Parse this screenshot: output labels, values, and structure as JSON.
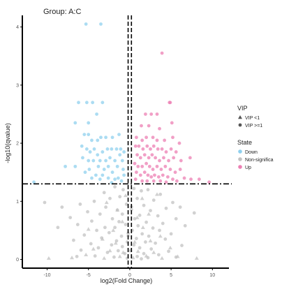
{
  "chart_data": {
    "type": "scatter",
    "title": "Group: A:C",
    "xlabel": "log2(Fold Change)",
    "ylabel": "-log10(qvalue)",
    "xlim": [
      -13,
      12
    ],
    "ylim": [
      -0.15,
      4.2
    ],
    "xticks": [
      -10,
      -5,
      0,
      5,
      10
    ],
    "yticks": [
      0,
      1,
      2,
      3,
      4
    ],
    "grid": false,
    "thresholds": {
      "vertical_lines_x": [
        -0.2,
        0.2
      ],
      "horizontal_line_y": 1.3
    },
    "legend": {
      "placement": "right",
      "groups": [
        {
          "title": "VIP",
          "entries": [
            {
              "label": "VIP <1",
              "shape": "triangle"
            },
            {
              "label": "VIP >=1",
              "shape": "circle"
            }
          ]
        },
        {
          "title": "State",
          "entries": [
            {
              "label": "Down",
              "color": "#8fd0ee"
            },
            {
              "label": "Non-significa",
              "color": "#c2c2c2"
            },
            {
              "label": "Up",
              "color": "#ec7fb3"
            }
          ]
        }
      ]
    },
    "colors": {
      "Down": "#8fd0ee",
      "Non-significant": "#c2c2c2",
      "Up": "#ec7fb3",
      "threshold_line": "#000000"
    },
    "series": [
      {
        "name": "Down",
        "shape": "circle",
        "points": [
          [
            -5.3,
            4.05
          ],
          [
            -3.5,
            4.05
          ],
          [
            -6.2,
            2.7
          ],
          [
            -5.2,
            2.7
          ],
          [
            -4.5,
            2.7
          ],
          [
            -3.3,
            2.7
          ],
          [
            -6.6,
            2.35
          ],
          [
            -5.0,
            2.35
          ],
          [
            -4.0,
            2.5
          ],
          [
            -5.5,
            2.15
          ],
          [
            -5.0,
            2.15
          ],
          [
            -4.6,
            2.05
          ],
          [
            -3.9,
            2.05
          ],
          [
            -3.5,
            2.1
          ],
          [
            -2.9,
            2.1
          ],
          [
            -2.1,
            2.1
          ],
          [
            -1.3,
            2.15
          ],
          [
            -5.8,
            1.95
          ],
          [
            -5.2,
            1.9
          ],
          [
            -4.8,
            1.85
          ],
          [
            -4.3,
            1.9
          ],
          [
            -3.9,
            1.8
          ],
          [
            -3.3,
            1.85
          ],
          [
            -2.7,
            1.9
          ],
          [
            -2.2,
            1.9
          ],
          [
            -1.6,
            1.9
          ],
          [
            -1.1,
            1.9
          ],
          [
            -0.7,
            1.85
          ],
          [
            -5.7,
            1.75
          ],
          [
            -5.0,
            1.7
          ],
          [
            -4.4,
            1.7
          ],
          [
            -3.6,
            1.7
          ],
          [
            -2.9,
            1.7
          ],
          [
            -2.4,
            1.75
          ],
          [
            -1.8,
            1.7
          ],
          [
            -1.2,
            1.8
          ],
          [
            -0.9,
            1.7
          ],
          [
            -7.8,
            1.6
          ],
          [
            -6.6,
            1.6
          ],
          [
            -4.9,
            1.55
          ],
          [
            -3.8,
            1.6
          ],
          [
            -3.1,
            1.55
          ],
          [
            -2.6,
            1.6
          ],
          [
            -1.5,
            1.6
          ],
          [
            -0.8,
            1.55
          ],
          [
            -5.4,
            1.5
          ],
          [
            -4.1,
            1.45
          ],
          [
            -3.3,
            1.45
          ],
          [
            -2.1,
            1.5
          ],
          [
            -1.4,
            1.4
          ],
          [
            -0.7,
            1.45
          ],
          [
            -4.6,
            1.4
          ],
          [
            -3.6,
            1.38
          ],
          [
            -2.6,
            1.4
          ],
          [
            -1.8,
            1.38
          ],
          [
            -1.0,
            1.35
          ],
          [
            -2.2,
            1.32
          ],
          [
            -11.6,
            1.33
          ]
        ]
      },
      {
        "name": "Up",
        "shape": "circle",
        "points": [
          [
            3.9,
            3.55
          ],
          [
            4.8,
            2.7
          ],
          [
            4.9,
            2.7
          ],
          [
            1.9,
            2.5
          ],
          [
            2.6,
            2.5
          ],
          [
            3.3,
            2.5
          ],
          [
            1.4,
            2.3
          ],
          [
            2.3,
            2.3
          ],
          [
            3.6,
            2.25
          ],
          [
            5.1,
            2.35
          ],
          [
            0.8,
            2.1
          ],
          [
            1.5,
            2.05
          ],
          [
            2.0,
            2.1
          ],
          [
            2.8,
            2.1
          ],
          [
            3.3,
            2.05
          ],
          [
            4.2,
            2.05
          ],
          [
            5.2,
            2.1
          ],
          [
            6.0,
            2.0
          ],
          [
            0.7,
            1.95
          ],
          [
            1.1,
            1.95
          ],
          [
            1.6,
            1.9
          ],
          [
            2.1,
            1.95
          ],
          [
            2.5,
            1.9
          ],
          [
            2.9,
            1.95
          ],
          [
            3.4,
            1.9
          ],
          [
            3.9,
            1.9
          ],
          [
            4.4,
            1.85
          ],
          [
            5.0,
            1.9
          ],
          [
            5.6,
            1.85
          ],
          [
            0.9,
            1.8
          ],
          [
            1.3,
            1.75
          ],
          [
            1.8,
            1.8
          ],
          [
            2.3,
            1.75
          ],
          [
            2.7,
            1.8
          ],
          [
            3.1,
            1.75
          ],
          [
            3.6,
            1.7
          ],
          [
            4.1,
            1.75
          ],
          [
            4.7,
            1.7
          ],
          [
            5.3,
            1.75
          ],
          [
            6.2,
            1.7
          ],
          [
            7.3,
            1.75
          ],
          [
            0.6,
            1.65
          ],
          [
            1.0,
            1.6
          ],
          [
            1.5,
            1.6
          ],
          [
            2.0,
            1.65
          ],
          [
            2.4,
            1.6
          ],
          [
            2.8,
            1.55
          ],
          [
            3.3,
            1.6
          ],
          [
            3.8,
            1.55
          ],
          [
            4.3,
            1.6
          ],
          [
            4.9,
            1.55
          ],
          [
            5.5,
            1.5
          ],
          [
            6.1,
            1.55
          ],
          [
            0.8,
            1.5
          ],
          [
            1.3,
            1.45
          ],
          [
            1.8,
            1.5
          ],
          [
            2.2,
            1.45
          ],
          [
            2.6,
            1.42
          ],
          [
            3.0,
            1.45
          ],
          [
            3.5,
            1.42
          ],
          [
            4.0,
            1.45
          ],
          [
            4.6,
            1.42
          ],
          [
            5.2,
            1.38
          ],
          [
            6.6,
            1.4
          ],
          [
            0.7,
            1.38
          ],
          [
            1.5,
            1.35
          ],
          [
            2.1,
            1.35
          ],
          [
            2.9,
            1.35
          ],
          [
            3.7,
            1.35
          ],
          [
            4.4,
            1.33
          ],
          [
            5.7,
            1.35
          ],
          [
            7.4,
            1.38
          ],
          [
            8.4,
            1.38
          ],
          [
            9.6,
            1.33
          ]
        ]
      },
      {
        "name": "Non-significant",
        "shape": "circle",
        "points": [
          [
            -1.8,
            1.25
          ],
          [
            -0.8,
            1.2
          ],
          [
            0.5,
            1.22
          ],
          [
            1.4,
            1.18
          ],
          [
            2.2,
            1.2
          ],
          [
            -3.1,
            1.15
          ],
          [
            3.7,
            1.12
          ],
          [
            -2.4,
            1.05
          ],
          [
            -1.2,
            1.08
          ],
          [
            0.9,
            1.05
          ],
          [
            2.9,
            1.02
          ],
          [
            -4.3,
            1.0
          ],
          [
            5.2,
            0.98
          ],
          [
            -6.0,
            0.95
          ],
          [
            -0.4,
            0.95
          ],
          [
            1.7,
            0.93
          ],
          [
            6.1,
            0.9
          ],
          [
            -10.3,
            0.98
          ],
          [
            -8.2,
            0.9
          ],
          [
            -2.9,
            0.9
          ],
          [
            4.4,
            0.88
          ],
          [
            -1.5,
            0.85
          ],
          [
            0.2,
            0.86
          ],
          [
            2.5,
            0.84
          ],
          [
            -5.1,
            0.82
          ],
          [
            7.8,
            0.8
          ],
          [
            -3.6,
            0.78
          ],
          [
            -0.9,
            0.78
          ],
          [
            1.2,
            0.76
          ],
          [
            3.4,
            0.75
          ],
          [
            -7.2,
            0.72
          ],
          [
            -2.1,
            0.7
          ],
          [
            0.6,
            0.7
          ],
          [
            5.6,
            0.7
          ],
          [
            -4.6,
            0.66
          ],
          [
            -1.3,
            0.65
          ],
          [
            2.0,
            0.64
          ],
          [
            4.0,
            0.62
          ],
          [
            -6.3,
            0.6
          ],
          [
            -0.5,
            0.6
          ],
          [
            1.0,
            0.58
          ],
          [
            6.7,
            0.58
          ],
          [
            -3.0,
            0.55
          ],
          [
            -1.8,
            0.55
          ],
          [
            2.8,
            0.54
          ],
          [
            -8.7,
            0.55
          ],
          [
            0.3,
            0.5
          ],
          [
            -4.0,
            0.5
          ],
          [
            3.6,
            0.5
          ],
          [
            -2.5,
            0.46
          ],
          [
            -0.2,
            0.45
          ],
          [
            1.5,
            0.44
          ],
          [
            5.0,
            0.44
          ],
          [
            -5.5,
            0.42
          ],
          [
            -1.0,
            0.4
          ],
          [
            2.3,
            0.4
          ],
          [
            -3.4,
            0.37
          ],
          [
            0.8,
            0.36
          ],
          [
            4.3,
            0.35
          ],
          [
            -6.8,
            0.33
          ],
          [
            -1.6,
            0.32
          ],
          [
            -0.3,
            0.3
          ],
          [
            1.9,
            0.3
          ],
          [
            3.1,
            0.28
          ],
          [
            -4.7,
            0.27
          ],
          [
            -2.2,
            0.25
          ],
          [
            0.5,
            0.25
          ],
          [
            6.3,
            0.24
          ],
          [
            -0.9,
            0.22
          ],
          [
            1.2,
            0.2
          ],
          [
            -3.8,
            0.2
          ],
          [
            2.6,
            0.18
          ],
          [
            -5.9,
            0.16
          ],
          [
            -1.4,
            0.15
          ],
          [
            0.1,
            0.15
          ],
          [
            4.7,
            0.14
          ],
          [
            -2.7,
            0.12
          ],
          [
            1.7,
            0.1
          ],
          [
            -0.6,
            0.1
          ],
          [
            3.5,
            0.08
          ],
          [
            -4.2,
            0.06
          ],
          [
            0.9,
            0.05
          ],
          [
            -1.9,
            0.04
          ],
          [
            2.2,
            0.03
          ],
          [
            -0.3,
            0.02
          ],
          [
            5.6,
            0.04
          ],
          [
            -6.4,
            0.05
          ],
          [
            1.4,
            0.01
          ]
        ]
      },
      {
        "name": "Non-significant",
        "shape": "triangle",
        "points": [
          [
            -9.8,
            0.02
          ],
          [
            -7.0,
            0.03
          ],
          [
            -5.3,
            0.08
          ],
          [
            -3.1,
            0.02
          ],
          [
            -1.2,
            0.05
          ],
          [
            0.4,
            0.03
          ],
          [
            2.0,
            0.06
          ],
          [
            3.9,
            0.02
          ],
          [
            5.8,
            0.05
          ],
          [
            8.1,
            0.02
          ],
          [
            -2.4,
            0.15
          ],
          [
            -0.8,
            0.12
          ],
          [
            1.0,
            0.14
          ],
          [
            2.9,
            0.12
          ],
          [
            -4.4,
            0.18
          ],
          [
            4.9,
            0.2
          ],
          [
            -1.7,
            0.28
          ],
          [
            0.6,
            0.3
          ],
          [
            2.5,
            0.32
          ],
          [
            -3.3,
            0.35
          ],
          [
            3.7,
            0.4
          ],
          [
            -0.2,
            0.42
          ],
          [
            -2.0,
            0.5
          ],
          [
            1.6,
            0.55
          ],
          [
            -5.0,
            0.52
          ],
          [
            -0.9,
            0.65
          ],
          [
            0.9,
            0.72
          ],
          [
            2.3,
            0.78
          ],
          [
            -1.5,
            0.85
          ],
          [
            0.2,
            0.92
          ],
          [
            -2.8,
            0.98
          ],
          [
            1.5,
            1.05
          ],
          [
            -0.5,
            1.1
          ],
          [
            3.3,
            1.12
          ]
        ]
      }
    ]
  }
}
